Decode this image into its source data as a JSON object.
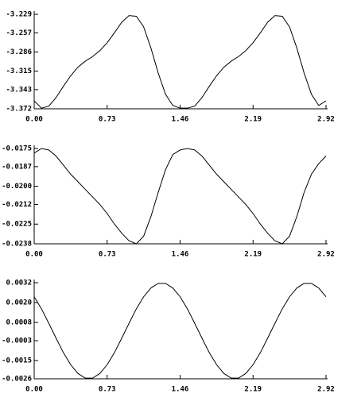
{
  "chart_data": [
    {
      "type": "line",
      "color": "#000000",
      "x": [
        0,
        0.073,
        0.146,
        0.219,
        0.292,
        0.365,
        0.438,
        0.511,
        0.584,
        0.657,
        0.73,
        0.803,
        0.876,
        0.949,
        1.022,
        1.095,
        1.168,
        1.241,
        1.314,
        1.387,
        1.46,
        1.533,
        1.606,
        1.679,
        1.752,
        1.825,
        1.898,
        1.971,
        2.044,
        2.117,
        2.19,
        2.263,
        2.336,
        2.409,
        2.482,
        2.555,
        2.628,
        2.701,
        2.774,
        2.847,
        2.92
      ],
      "values": [
        -3.36,
        -3.371,
        -3.368,
        -3.355,
        -3.338,
        -3.322,
        -3.309,
        -3.3,
        -3.293,
        -3.284,
        -3.272,
        -3.257,
        -3.241,
        -3.231,
        -3.232,
        -3.248,
        -3.28,
        -3.318,
        -3.35,
        -3.367,
        -3.371,
        -3.371,
        -3.368,
        -3.355,
        -3.338,
        -3.322,
        -3.309,
        -3.3,
        -3.293,
        -3.284,
        -3.272,
        -3.257,
        -3.241,
        -3.231,
        -3.232,
        -3.248,
        -3.28,
        -3.318,
        -3.35,
        -3.367,
        -3.36
      ],
      "xlim": [
        0,
        2.92
      ],
      "xticks": [
        {
          "value": 0,
          "label": "0.00"
        },
        0.73,
        1.46,
        2.19,
        2.92
      ],
      "ylim": [
        -3.372,
        -3.229
      ],
      "yticks": [
        -3.372,
        -3.343,
        -3.315,
        -3.286,
        -3.257,
        -3.229
      ]
    },
    {
      "type": "line",
      "color": "#000000",
      "x": [
        0,
        0.073,
        0.146,
        0.219,
        0.292,
        0.365,
        0.438,
        0.511,
        0.584,
        0.657,
        0.73,
        0.803,
        0.876,
        0.949,
        1.022,
        1.095,
        1.168,
        1.241,
        1.314,
        1.387,
        1.46,
        1.533,
        1.606,
        1.679,
        1.752,
        1.825,
        1.898,
        1.971,
        2.044,
        2.117,
        2.19,
        2.263,
        2.336,
        2.409,
        2.482,
        2.555,
        2.628,
        2.701,
        2.774,
        2.847,
        2.92
      ],
      "values": [
        -0.0178,
        -0.0175,
        -0.0176,
        -0.018,
        -0.0186,
        -0.0192,
        -0.0197,
        -0.0202,
        -0.0207,
        -0.0212,
        -0.0218,
        -0.0225,
        -0.0231,
        -0.0236,
        -0.0238,
        -0.0233,
        -0.022,
        -0.0204,
        -0.0189,
        -0.0179,
        -0.0176,
        -0.0175,
        -0.0176,
        -0.018,
        -0.0186,
        -0.0192,
        -0.0197,
        -0.0202,
        -0.0207,
        -0.0212,
        -0.0218,
        -0.0225,
        -0.0231,
        -0.0236,
        -0.0238,
        -0.0233,
        -0.022,
        -0.0204,
        -0.0192,
        -0.0185,
        -0.018
      ],
      "xlim": [
        0,
        2.92
      ],
      "xticks": [
        {
          "value": 0,
          "label": "0.00"
        },
        0.73,
        1.46,
        2.19,
        2.92
      ],
      "ylim": [
        -0.0238,
        -0.0175
      ],
      "yticks": [
        -0.0238,
        -0.0225,
        -0.0212,
        {
          "value": -0.02,
          "label": "-0.0200"
        },
        -0.0187,
        -0.0175
      ]
    },
    {
      "type": "line",
      "color": "#000000",
      "x": [
        0,
        0.073,
        0.146,
        0.219,
        0.292,
        0.365,
        0.438,
        0.511,
        0.584,
        0.657,
        0.73,
        0.803,
        0.876,
        0.949,
        1.022,
        1.095,
        1.168,
        1.241,
        1.314,
        1.387,
        1.46,
        1.533,
        1.606,
        1.679,
        1.752,
        1.825,
        1.898,
        1.971,
        2.044,
        2.117,
        2.19,
        2.263,
        2.336,
        2.409,
        2.482,
        2.555,
        2.628,
        2.701,
        2.774,
        2.847,
        2.92
      ],
      "values": [
        0.00235,
        0.00162,
        0.00075,
        -0.00015,
        -0.00102,
        -0.00175,
        -0.00228,
        -0.00256,
        -0.00256,
        -0.00228,
        -0.00175,
        -0.00102,
        -0.00015,
        0.00075,
        0.00162,
        0.00235,
        0.00288,
        0.00316,
        0.00316,
        0.00288,
        0.00235,
        0.00162,
        0.00075,
        -0.00015,
        -0.00102,
        -0.00175,
        -0.00228,
        -0.00256,
        -0.00256,
        -0.00228,
        -0.00175,
        -0.00102,
        -0.00015,
        0.00075,
        0.00162,
        0.00235,
        0.00288,
        0.00316,
        0.00316,
        0.00288,
        0.00235
      ],
      "xlim": [
        0,
        2.92
      ],
      "xticks": [
        {
          "value": 0,
          "label": "0.00"
        },
        0.73,
        1.46,
        2.19,
        2.92
      ],
      "ylim": [
        -0.0026,
        0.0032
      ],
      "yticks": [
        -0.0026,
        -0.0015,
        -0.0003,
        0.0008,
        {
          "value": 0.002,
          "label": "0.0020"
        },
        0.0032
      ]
    }
  ]
}
